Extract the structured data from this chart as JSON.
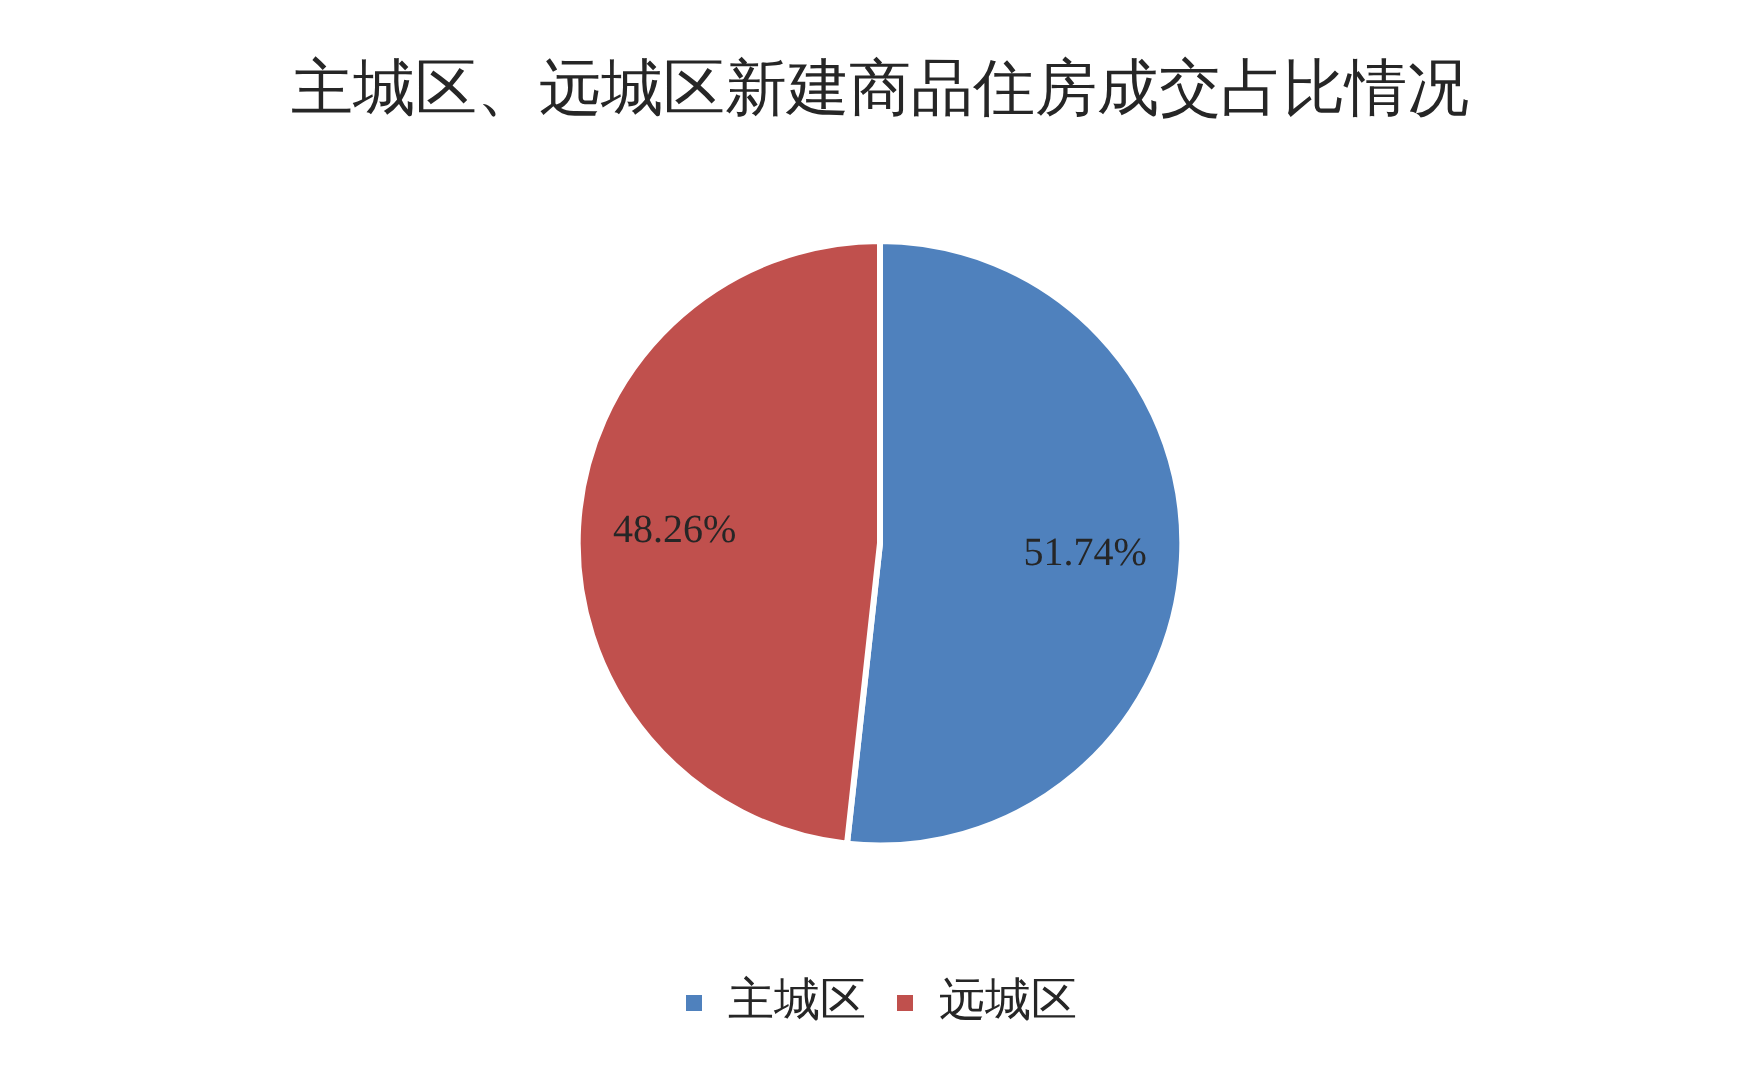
{
  "chart_data": {
    "type": "pie",
    "title": "主城区、远城区新建商品住房成交占比情况",
    "categories": [
      "主城区",
      "远城区"
    ],
    "values": [
      51.74,
      48.26
    ],
    "colors": [
      "#4f81bd",
      "#c0504d"
    ],
    "value_labels": [
      "51.74%",
      "48.26%"
    ],
    "legend": "bottom"
  }
}
